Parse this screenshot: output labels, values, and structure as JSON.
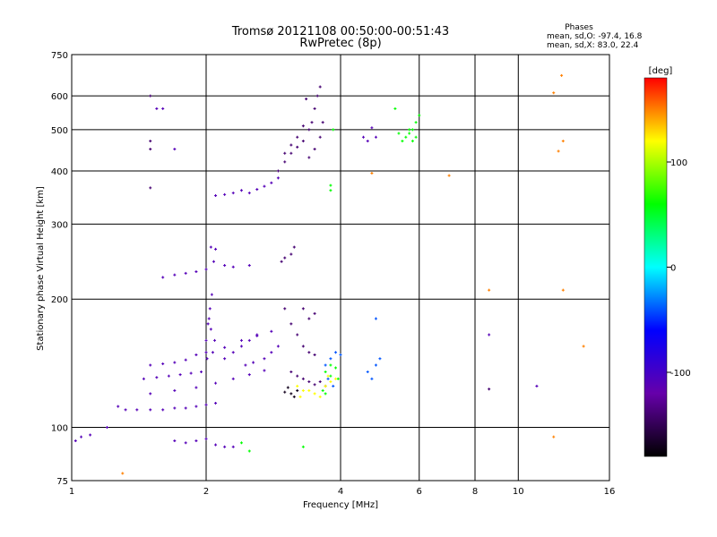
{
  "chart_data": {
    "type": "scatter",
    "title": "Tromsø 20121108 00:50:00-00:51:43",
    "subtitle": "RwPretec (8p)",
    "xlabel": "Frequency [MHz]",
    "ylabel": "Stationary phase Virtual Height [km]",
    "x_scale": "log",
    "y_scale": "log",
    "xlim": [
      1,
      16
    ],
    "ylim": [
      75,
      750
    ],
    "x_ticks": [
      1,
      2,
      4,
      6,
      8,
      10,
      16
    ],
    "y_ticks": [
      75,
      100,
      200,
      300,
      400,
      500,
      600,
      750
    ],
    "grid": true,
    "info": {
      "heading": "Phases",
      "line1": "mean, sd,O: -97.4, 16.8",
      "line2": "mean, sd,X:  83.0, 22.4"
    },
    "colorbar": {
      "label": "[deg]",
      "range": [
        -180,
        180
      ],
      "ticks": [
        100,
        0,
        -100
      ],
      "colors": [
        "#ff0000",
        "#ffff00",
        "#00ff00",
        "#00ffff",
        "#0000ff",
        "#6600aa",
        "#000000"
      ]
    },
    "series": [
      {
        "phase": -110,
        "points": [
          [
            1.02,
            93
          ],
          [
            1.05,
            95
          ],
          [
            1.1,
            96
          ],
          [
            1.2,
            100
          ],
          [
            1.27,
            112
          ],
          [
            1.32,
            110
          ],
          [
            1.4,
            110
          ],
          [
            1.5,
            110
          ],
          [
            1.6,
            110
          ],
          [
            1.7,
            111
          ],
          [
            1.8,
            111
          ],
          [
            1.9,
            112
          ],
          [
            2.0,
            113
          ],
          [
            2.1,
            114
          ],
          [
            1.5,
            140
          ],
          [
            1.6,
            141
          ],
          [
            1.7,
            142
          ],
          [
            1.8,
            144
          ],
          [
            1.9,
            148
          ],
          [
            2.0,
            150
          ],
          [
            2.2,
            154
          ],
          [
            2.4,
            160
          ],
          [
            2.6,
            164
          ],
          [
            2.8,
            168
          ],
          [
            1.5,
            120
          ],
          [
            1.7,
            122
          ],
          [
            1.9,
            124
          ],
          [
            2.1,
            127
          ],
          [
            2.3,
            130
          ],
          [
            2.5,
            133
          ],
          [
            2.7,
            136
          ],
          [
            1.45,
            130
          ],
          [
            1.55,
            131
          ],
          [
            1.65,
            132
          ],
          [
            1.75,
            133
          ],
          [
            1.85,
            134
          ],
          [
            1.95,
            135
          ],
          [
            2.0,
            160
          ],
          [
            2.02,
            175
          ],
          [
            2.04,
            190
          ],
          [
            2.06,
            205
          ],
          [
            2.03,
            180
          ],
          [
            2.05,
            170
          ],
          [
            2.01,
            145
          ],
          [
            2.07,
            150
          ],
          [
            2.09,
            160
          ],
          [
            2.2,
            145
          ],
          [
            2.3,
            150
          ],
          [
            2.4,
            155
          ],
          [
            2.5,
            160
          ],
          [
            2.6,
            165
          ],
          [
            2.45,
            140
          ],
          [
            2.55,
            142
          ],
          [
            2.7,
            145
          ],
          [
            2.8,
            150
          ],
          [
            2.9,
            155
          ],
          [
            1.6,
            225
          ],
          [
            1.7,
            228
          ],
          [
            1.8,
            230
          ],
          [
            1.9,
            232
          ],
          [
            2.0,
            235
          ],
          [
            2.05,
            265
          ],
          [
            2.1,
            262
          ],
          [
            2.08,
            245
          ],
          [
            2.2,
            240
          ],
          [
            2.3,
            238
          ],
          [
            2.5,
            240
          ],
          [
            2.1,
            350
          ],
          [
            2.2,
            352
          ],
          [
            2.3,
            355
          ],
          [
            2.4,
            360
          ],
          [
            2.5,
            355
          ],
          [
            2.6,
            362
          ],
          [
            2.7,
            368
          ],
          [
            2.8,
            375
          ],
          [
            2.9,
            385
          ],
          [
            1.7,
            93
          ],
          [
            1.8,
            92
          ],
          [
            1.9,
            93
          ],
          [
            2.0,
            94
          ],
          [
            2.1,
            91
          ],
          [
            2.2,
            90
          ],
          [
            2.3,
            90
          ],
          [
            1.55,
            560
          ],
          [
            1.6,
            560
          ],
          [
            1.7,
            450
          ],
          [
            4.5,
            480
          ],
          [
            4.6,
            470
          ],
          [
            4.7,
            505
          ],
          [
            4.8,
            480
          ],
          [
            8.6,
            165
          ],
          [
            11.0,
            125
          ]
        ]
      },
      {
        "phase": -140,
        "points": [
          [
            2.9,
            400
          ],
          [
            3.0,
            420
          ],
          [
            3.1,
            440
          ],
          [
            3.2,
            455
          ],
          [
            3.3,
            470
          ],
          [
            3.4,
            500
          ],
          [
            3.45,
            520
          ],
          [
            3.5,
            560
          ],
          [
            3.55,
            600
          ],
          [
            3.6,
            630
          ],
          [
            3.0,
            440
          ],
          [
            3.1,
            460
          ],
          [
            3.2,
            480
          ],
          [
            3.3,
            510
          ],
          [
            3.35,
            590
          ],
          [
            3.4,
            430
          ],
          [
            3.5,
            450
          ],
          [
            3.6,
            480
          ],
          [
            3.65,
            520
          ],
          [
            3.0,
            190
          ],
          [
            3.1,
            175
          ],
          [
            3.2,
            165
          ],
          [
            3.3,
            155
          ],
          [
            3.4,
            150
          ],
          [
            3.5,
            148
          ],
          [
            3.3,
            190
          ],
          [
            3.4,
            180
          ],
          [
            3.5,
            185
          ],
          [
            3.1,
            135
          ],
          [
            3.2,
            132
          ],
          [
            3.3,
            130
          ],
          [
            3.4,
            128
          ],
          [
            3.5,
            126
          ],
          [
            3.6,
            128
          ],
          [
            3.7,
            125
          ],
          [
            3.0,
            250
          ],
          [
            3.1,
            255
          ],
          [
            3.15,
            265
          ],
          [
            2.95,
            245
          ],
          [
            1.5,
            600
          ],
          [
            1.5,
            470
          ],
          [
            1.5,
            450
          ],
          [
            1.5,
            365
          ],
          [
            8.6,
            123
          ]
        ]
      },
      {
        "phase": -40,
        "points": [
          [
            3.7,
            140
          ],
          [
            3.8,
            145
          ],
          [
            3.9,
            150
          ],
          [
            4.0,
            148
          ],
          [
            3.75,
            130
          ],
          [
            3.85,
            125
          ],
          [
            4.6,
            135
          ],
          [
            4.7,
            130
          ],
          [
            4.8,
            140
          ],
          [
            4.9,
            145
          ],
          [
            4.8,
            180
          ]
        ]
      },
      {
        "phase": 60,
        "points": [
          [
            5.5,
            470
          ],
          [
            5.6,
            480
          ],
          [
            5.7,
            490
          ],
          [
            5.8,
            500
          ],
          [
            5.9,
            520
          ],
          [
            6.0,
            540
          ],
          [
            5.7,
            500
          ],
          [
            5.8,
            470
          ],
          [
            5.9,
            480
          ],
          [
            5.4,
            490
          ],
          [
            5.3,
            560
          ],
          [
            3.7,
            135
          ],
          [
            3.8,
            140
          ],
          [
            3.9,
            138
          ],
          [
            3.65,
            122
          ],
          [
            3.7,
            120
          ],
          [
            3.8,
            132
          ],
          [
            3.95,
            130
          ],
          [
            3.8,
            360
          ],
          [
            3.8,
            370
          ],
          [
            3.85,
            500
          ],
          [
            2.4,
            92
          ],
          [
            2.5,
            88
          ],
          [
            3.3,
            90
          ]
        ]
      },
      {
        "phase": 120,
        "points": [
          [
            3.2,
            125
          ],
          [
            3.3,
            122
          ],
          [
            3.4,
            122
          ],
          [
            3.5,
            120
          ],
          [
            3.6,
            118
          ],
          [
            3.7,
            125
          ],
          [
            3.8,
            128
          ],
          [
            3.9,
            130
          ],
          [
            3.25,
            118
          ],
          [
            3.75,
            132
          ]
        ]
      },
      {
        "phase": 150,
        "points": [
          [
            12.0,
            610
          ],
          [
            12.3,
            445
          ],
          [
            12.6,
            470
          ],
          [
            12.5,
            670
          ],
          [
            8.6,
            210
          ],
          [
            12.6,
            210
          ],
          [
            12.0,
            95
          ],
          [
            14.0,
            155
          ],
          [
            7.0,
            390
          ],
          [
            4.7,
            395
          ],
          [
            1.3,
            78
          ]
        ]
      },
      {
        "phase": -170,
        "points": [
          [
            3.1,
            120
          ],
          [
            3.15,
            118
          ],
          [
            3.2,
            122
          ],
          [
            3.0,
            121
          ],
          [
            3.05,
            124
          ]
        ]
      }
    ]
  }
}
